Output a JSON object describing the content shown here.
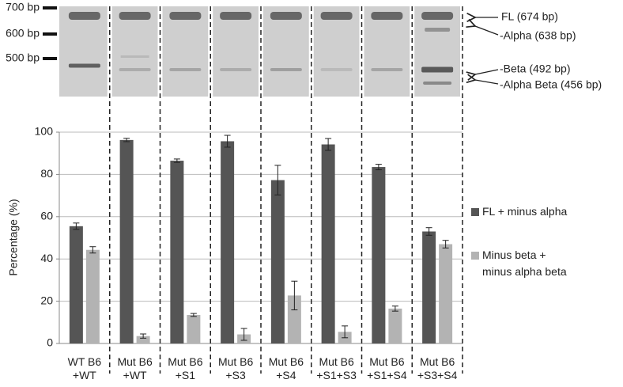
{
  "gel": {
    "markers": [
      "700 bp",
      "600 bp",
      "500 bp"
    ],
    "band_labels": [
      "FL (674 bp)",
      "-Alpha (638 bp)",
      "-Beta (492 bp)",
      "-Alpha Beta (456 bp)"
    ]
  },
  "chart_data": {
    "type": "bar",
    "y_label": "Percentage (%)",
    "categories": [
      "WT B6\n+WT",
      "Mut B6\n+WT",
      "Mut B6\n+S1",
      "Mut B6\n+S3",
      "Mut B6\n+S4",
      "Mut B6\n+S1+S3",
      "Mut B6\n+S1+S4",
      "Mut B6\n+S3+S4"
    ],
    "series": [
      {
        "name": "FL + minus alpha",
        "color": "#555555",
        "values": [
          55.5,
          96.3,
          86.5,
          95.7,
          77.3,
          94.2,
          83.5,
          53
        ],
        "errors": [
          1.5,
          0.8,
          0.8,
          2.8,
          7,
          2.8,
          1.3,
          1.8
        ]
      },
      {
        "name": "Minus beta +\nminus alpha beta",
        "color": "#b3b3b3",
        "values": [
          44.3,
          3.5,
          13.5,
          4.3,
          22.7,
          5.5,
          16.5,
          47
        ],
        "errors": [
          1.5,
          1,
          0.7,
          2.8,
          6.8,
          2.8,
          1.2,
          1.8
        ]
      }
    ],
    "ylim": [
      0,
      100
    ],
    "yticks": [
      0,
      20,
      40,
      60,
      80,
      100
    ],
    "grid": true
  }
}
